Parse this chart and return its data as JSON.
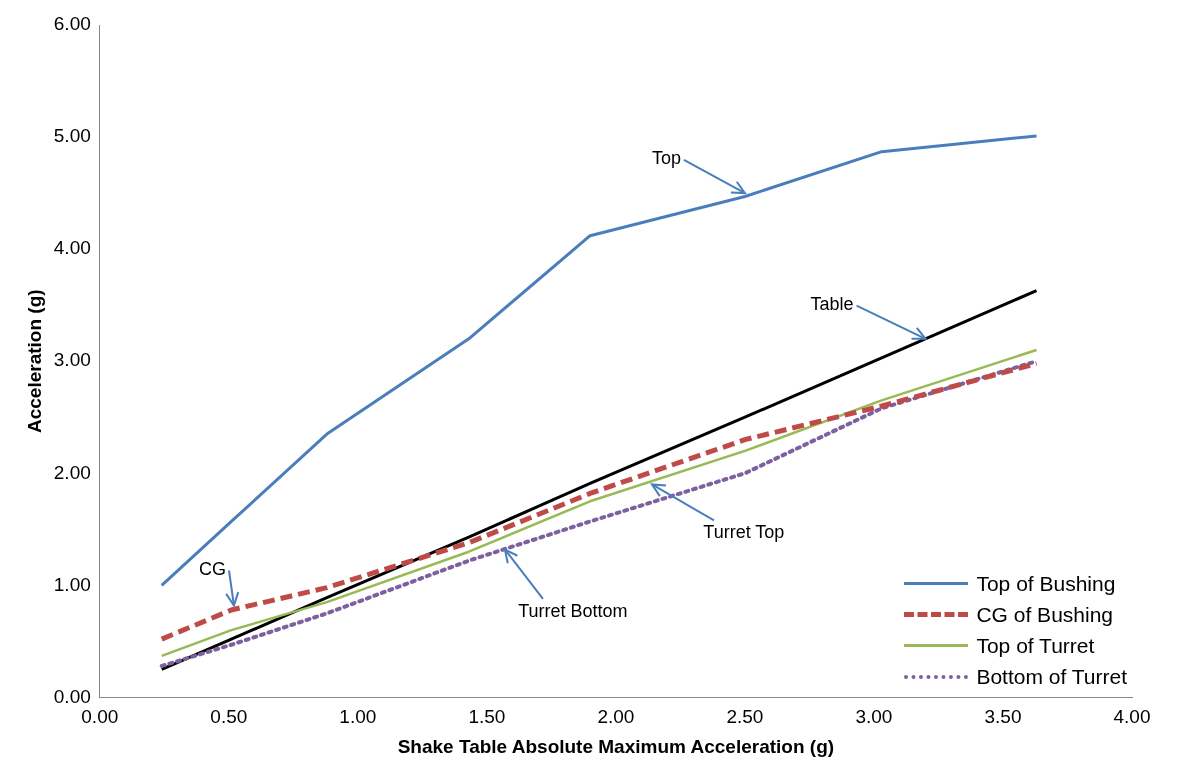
{
  "chart_data": {
    "type": "line",
    "xlabel": "Shake Table Absolute Maximum Acceleration (g)",
    "ylabel": "Acceleration (g)",
    "x": [
      0.24,
      0.51,
      0.88,
      1.43,
      1.9,
      2.5,
      3.03,
      3.63
    ],
    "series": [
      {
        "name": "Top of Bushing",
        "color": "#4a7ebb",
        "line_style": "solid",
        "values": [
          1.0,
          1.57,
          2.35,
          3.2,
          4.12,
          4.47,
          4.87,
          5.01
        ]
      },
      {
        "name": "CG of Bushing",
        "color": "#be4b48",
        "line_style": "dashed",
        "values": [
          0.52,
          0.78,
          0.98,
          1.38,
          1.82,
          2.3,
          2.6,
          2.98
        ]
      },
      {
        "name": "Top of Turret",
        "color": "#98b954",
        "line_style": "solid",
        "values": [
          0.37,
          0.6,
          0.85,
          1.3,
          1.75,
          2.2,
          2.65,
          3.1
        ]
      },
      {
        "name": "Bottom of Turret",
        "color": "#7d60a0",
        "line_style": "dotted",
        "values": [
          0.28,
          0.47,
          0.75,
          1.22,
          1.57,
          2.0,
          2.58,
          3.0
        ]
      },
      {
        "color": "#000000",
        "line_style": "solid",
        "values": [
          0.25,
          0.52,
          0.89,
          1.43,
          1.91,
          2.5,
          3.03,
          3.63
        ]
      }
    ],
    "xlim": [
      0,
      4
    ],
    "xticks": [
      {
        "value": 0,
        "label": "0.00"
      },
      {
        "value": 0.5,
        "label": "0.50"
      },
      {
        "value": 1,
        "label": "1.00"
      },
      {
        "value": 1.5,
        "label": "1.50"
      },
      {
        "value": 2,
        "label": "2.00"
      },
      {
        "value": 2.5,
        "label": "2.50"
      },
      {
        "value": 3,
        "label": "3.00"
      },
      {
        "value": 3.5,
        "label": "3.50"
      },
      {
        "value": 4,
        "label": "4.00"
      }
    ],
    "ylim": [
      0,
      6
    ],
    "yticks": [
      {
        "value": 0,
        "label": "0.00"
      },
      {
        "value": 1,
        "label": "1.00"
      },
      {
        "value": 2,
        "label": "2.00"
      },
      {
        "value": 3,
        "label": "3.00"
      },
      {
        "value": 4,
        "label": "4.00"
      },
      {
        "value": 5,
        "label": "5.00"
      },
      {
        "value": 6,
        "label": "6.00"
      }
    ],
    "grid": false,
    "legend": "bottom right",
    "marker": "none",
    "annotations": [
      {
        "text": "Top",
        "x": 2.5,
        "y": 4.5
      },
      {
        "text": "Table",
        "x": 3.2,
        "y": 3.2
      },
      {
        "text": "CG",
        "x": 0.52,
        "y": 0.82
      },
      {
        "text": "Turret Top",
        "x": 2.14,
        "y": 1.9
      },
      {
        "text": "Turret Bottom",
        "x": 1.57,
        "y": 1.32
      }
    ]
  }
}
